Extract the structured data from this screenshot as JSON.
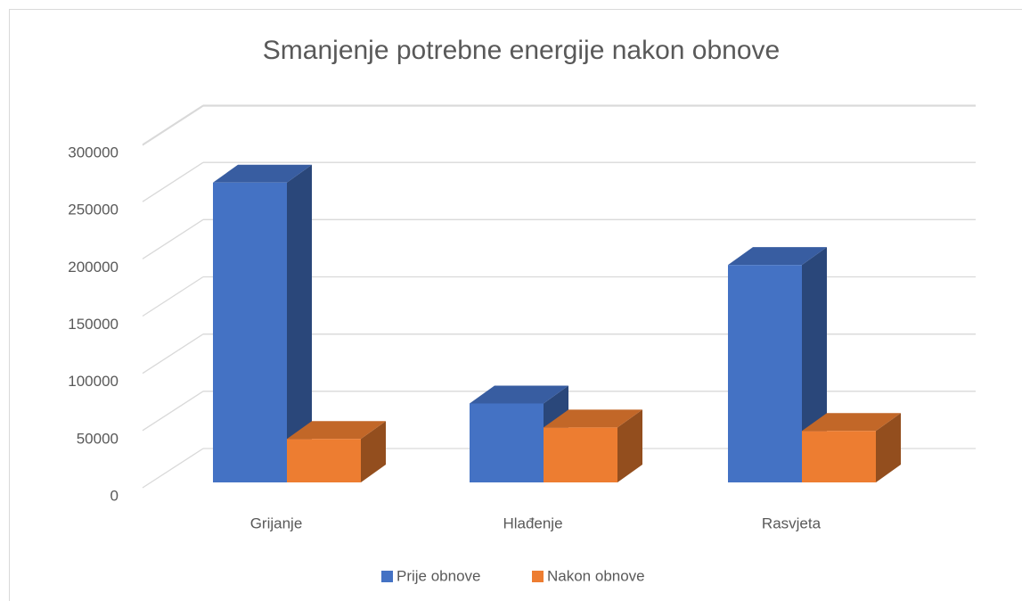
{
  "chart_data": {
    "type": "bar3d",
    "title": "Smanjenje potrebne energije nakon obnove",
    "categories": [
      "Grijanje",
      "Hlađenje",
      "Rasvjeta"
    ],
    "series": [
      {
        "name": "Prije obnove",
        "color": "#4472c4",
        "values": [
          262000,
          69000,
          190000
        ]
      },
      {
        "name": "Nakon obnove",
        "color": "#ed7d31",
        "values": [
          38000,
          48000,
          45000
        ]
      }
    ],
    "ylim": [
      0,
      300000
    ],
    "yticks": [
      0,
      50000,
      100000,
      150000,
      200000,
      250000,
      300000
    ],
    "grid": true,
    "legend": "bottom"
  }
}
